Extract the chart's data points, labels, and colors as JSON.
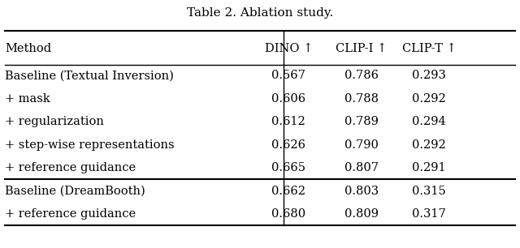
{
  "title": "Table 2. Ablation study.",
  "columns": [
    "Method",
    "DINO ↑",
    "CLIP-I ↑",
    "CLIP-T ↑"
  ],
  "rows": [
    [
      "Baseline (Textual Inversion)",
      "0.567",
      "0.786",
      "0.293"
    ],
    [
      "+ mask",
      "0.606",
      "0.788",
      "0.292"
    ],
    [
      "+ regularization",
      "0.612",
      "0.789",
      "0.294"
    ],
    [
      "+ step-wise representations",
      "0.626",
      "0.790",
      "0.292"
    ],
    [
      "+ reference guidance",
      "0.665",
      "0.807",
      "0.291"
    ],
    [
      "Baseline (DreamBooth)",
      "0.662",
      "0.803",
      "0.315"
    ],
    [
      "+ reference guidance",
      "0.680",
      "0.809",
      "0.317"
    ]
  ],
  "group_separator_after_row": 5,
  "bg_color": "#ffffff",
  "text_color": "#000000",
  "font_size": 10.5,
  "title_font_size": 11
}
